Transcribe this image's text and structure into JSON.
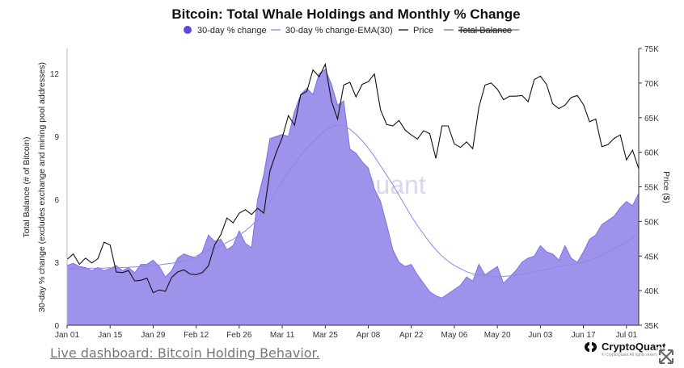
{
  "chart_data": {
    "type": "area",
    "title": "Bitcoin: Total Whale Holdings and Monthly % Change",
    "legend": {
      "placement": "top-center",
      "items": [
        {
          "label": "30-day % change",
          "marker": "dot",
          "color": "#5b4bd8"
        },
        {
          "label": "30-day % change-EMA(30)",
          "marker": "line",
          "color": "#8f86e6"
        },
        {
          "label": "Price",
          "marker": "line",
          "color": "#111111"
        },
        {
          "label": "Total Balance",
          "marker": "line",
          "color": "#6f7590",
          "struck": true
        }
      ]
    },
    "x_ticks": [
      "Jan 01",
      "Jan 15",
      "Jan 29",
      "Feb 12",
      "Feb 26",
      "Mar 11",
      "Mar 25",
      "Apr 08",
      "Apr 22",
      "May 06",
      "May 20",
      "Jun 03",
      "Jun 17",
      "Jul 01"
    ],
    "x_range": [
      "Jan 01",
      "Jul 06"
    ],
    "y_left": {
      "label_line1": "Total Balance (# of Bitcoin)",
      "label_line2": "30-day % change (excludes exchange and mining pool addresses)",
      "ticks": [
        0,
        3,
        6,
        9,
        12
      ],
      "range": [
        0,
        13.2
      ]
    },
    "y_right": {
      "label": "Price ($)",
      "ticks": [
        "35K",
        "40K",
        "45K",
        "50K",
        "55K",
        "60K",
        "65K",
        "70K",
        "75K"
      ],
      "range": [
        35000,
        75000
      ]
    },
    "grid": false,
    "days": [
      0,
      2,
      4,
      6,
      8,
      10,
      12,
      14,
      16,
      18,
      20,
      22,
      24,
      26,
      28,
      30,
      32,
      34,
      36,
      38,
      40,
      42,
      44,
      46,
      48,
      50,
      52,
      54,
      56,
      58,
      60,
      62,
      64,
      66,
      68,
      70,
      72,
      74,
      76,
      78,
      80,
      82,
      84,
      86,
      88,
      90,
      92,
      94,
      96,
      98,
      100,
      102,
      104,
      106,
      108,
      110,
      112,
      114,
      116,
      118,
      120,
      122,
      124,
      126,
      128,
      130,
      132,
      134,
      136,
      138,
      140,
      142,
      144,
      146,
      148,
      150,
      152,
      154,
      156,
      158,
      160,
      162,
      164,
      166,
      168,
      170,
      172,
      174,
      176,
      178,
      180,
      182,
      184,
      186
    ],
    "series": [
      {
        "name": "30-day % change",
        "color": "#9d93ea",
        "values": [
          2.85,
          2.95,
          2.8,
          2.75,
          2.6,
          2.75,
          2.6,
          2.7,
          2.85,
          2.6,
          2.75,
          2.5,
          2.9,
          2.9,
          3.1,
          2.8,
          2.3,
          2.6,
          3.2,
          3.4,
          3.3,
          3.2,
          3.5,
          4.3,
          4.0,
          4.1,
          3.6,
          3.8,
          4.5,
          3.9,
          3.7,
          6.0,
          7.2,
          8.9,
          9.0,
          9.1,
          9.0,
          10.2,
          11.0,
          11.3,
          11.0,
          12.0,
          12.2,
          11.5,
          10.5,
          10.7,
          8.4,
          8.2,
          7.8,
          7.5,
          6.5,
          5.9,
          4.8,
          3.6,
          3.0,
          2.8,
          2.9,
          2.4,
          2.0,
          1.6,
          1.4,
          1.3,
          1.5,
          1.7,
          1.9,
          2.3,
          2.1,
          2.9,
          2.4,
          2.6,
          2.8,
          2.0,
          2.3,
          2.6,
          3.0,
          3.2,
          3.3,
          3.8,
          3.5,
          3.4,
          3.1,
          3.8,
          3.2,
          3.0,
          3.5,
          4.1,
          4.3,
          4.8,
          5.0,
          5.2,
          5.6,
          5.9,
          5.7,
          6.3
        ]
      },
      {
        "name": "30-day % change-EMA(30)",
        "color": "#8f86e6",
        "values": [
          2.68,
          2.7,
          2.7,
          2.7,
          2.72,
          2.72,
          2.72,
          2.74,
          2.74,
          2.75,
          2.76,
          2.78,
          2.8,
          2.82,
          2.85,
          2.88,
          2.92,
          2.95,
          3.0,
          3.05,
          3.15,
          3.3,
          3.45,
          3.6,
          3.7,
          3.8,
          3.95,
          4.1,
          4.3,
          4.5,
          4.75,
          5.05,
          5.45,
          5.9,
          6.4,
          6.85,
          7.3,
          7.7,
          8.1,
          8.45,
          8.75,
          9.05,
          9.3,
          9.45,
          9.55,
          9.5,
          9.35,
          9.1,
          8.8,
          8.45,
          8.05,
          7.6,
          7.15,
          6.7,
          6.2,
          5.7,
          5.2,
          4.75,
          4.35,
          3.95,
          3.6,
          3.3,
          3.05,
          2.85,
          2.7,
          2.55,
          2.45,
          2.4,
          2.35,
          2.33,
          2.32,
          2.33,
          2.35,
          2.38,
          2.42,
          2.47,
          2.55,
          2.6,
          2.65,
          2.72,
          2.8,
          2.85,
          2.9,
          2.95,
          3.0,
          3.1,
          3.2,
          3.35,
          3.5,
          3.65,
          3.8,
          3.95,
          4.15,
          4.4
        ]
      },
      {
        "name": "Price",
        "color": "#111111",
        "values": [
          44500,
          45300,
          43800,
          44700,
          44000,
          44600,
          47000,
          46600,
          42700,
          42600,
          42900,
          41400,
          41500,
          41800,
          39700,
          40100,
          39900,
          41900,
          42700,
          43000,
          42400,
          42300,
          42600,
          43600,
          46600,
          48100,
          50500,
          49800,
          51200,
          51700,
          51000,
          51900,
          51200,
          57300,
          59900,
          62100,
          65300,
          63900,
          68300,
          68800,
          71900,
          70900,
          72700,
          67400,
          64800,
          69700,
          70100,
          68000,
          69800,
          70200,
          71300,
          66100,
          64000,
          63800,
          64600,
          63200,
          62500,
          61900,
          63100,
          62700,
          59100,
          63800,
          63800,
          61200,
          60700,
          61500,
          60500,
          66500,
          69700,
          70000,
          69100,
          67600,
          68100,
          68100,
          68200,
          67300,
          70500,
          71000,
          69800,
          67000,
          66300,
          66800,
          67900,
          68200,
          66900,
          64400,
          64800,
          60800,
          61100,
          62000,
          62500,
          58900,
          60300,
          57600
        ]
      }
    ]
  },
  "watermark": "CryptoQuant",
  "footer": {
    "link_text": "Live dashboard: Bitcoin Holding Behavior.",
    "brand_name": "CryptoQuant",
    "brand_sub": "© CryptoQuant All rights reserved."
  },
  "colors": {
    "area_fill": "#9d93ea",
    "area_stroke": "#7f72e6",
    "ema": "#8f86e6",
    "price": "#111111",
    "legend_dot": "#5b4bd8"
  }
}
